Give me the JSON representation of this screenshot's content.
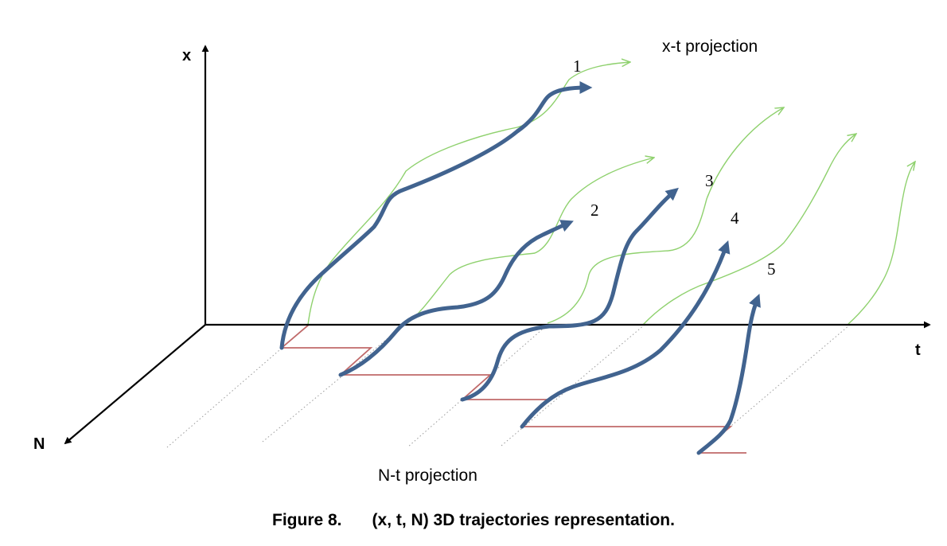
{
  "axes": {
    "x_label": "x",
    "t_label": "t",
    "n_label": "N"
  },
  "projections": {
    "xt_label": "x-t projection",
    "nt_label": "N-t projection"
  },
  "trajectories": [
    {
      "label": "1"
    },
    {
      "label": "2"
    },
    {
      "label": "3"
    },
    {
      "label": "4"
    },
    {
      "label": "5"
    }
  ],
  "colors": {
    "trajectory": "#41638f",
    "xt_projection": "#8fd16e",
    "nt_projection": "#c06a6a",
    "guide": "#9a9a9a",
    "axis": "#000000"
  },
  "caption": {
    "number": "Figure 8.",
    "text": "(x, t, N) 3D trajectories representation."
  }
}
